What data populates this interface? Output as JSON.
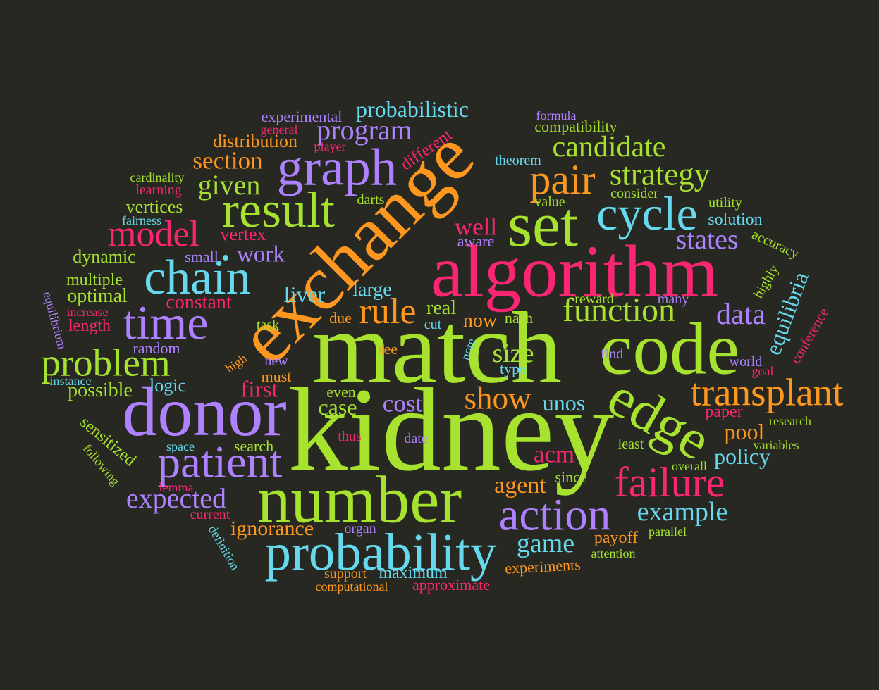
{
  "palette": {
    "background": "#272822",
    "green": "#A6E22E",
    "orange": "#FD971F",
    "pink": "#F92672",
    "purple": "#AE81FF",
    "cyan": "#66D9EF"
  },
  "words": [
    {
      "text": "kidney",
      "color": "green"
    },
    {
      "text": "match",
      "color": "green"
    },
    {
      "text": "exchange",
      "color": "orange"
    },
    {
      "text": "algorithm",
      "color": "pink"
    },
    {
      "text": "code",
      "color": "green"
    },
    {
      "text": "number",
      "color": "green"
    },
    {
      "text": "donor",
      "color": "purple"
    },
    {
      "text": "set",
      "color": "green"
    },
    {
      "text": "edge",
      "color": "green"
    },
    {
      "text": "probability",
      "color": "cyan"
    },
    {
      "text": "chain",
      "color": "cyan"
    },
    {
      "text": "result",
      "color": "green"
    },
    {
      "text": "time",
      "color": "purple"
    },
    {
      "text": "patient",
      "color": "purple"
    },
    {
      "text": "action",
      "color": "purple"
    },
    {
      "text": "graph",
      "color": "purple"
    },
    {
      "text": "cycle",
      "color": "cyan"
    },
    {
      "text": "transplant",
      "color": "orange"
    },
    {
      "text": "failure",
      "color": "pink"
    },
    {
      "text": "pair",
      "color": "orange"
    },
    {
      "text": "problem",
      "color": "green"
    },
    {
      "text": "model",
      "color": "pink"
    },
    {
      "text": "rule",
      "color": "orange"
    },
    {
      "text": "function",
      "color": "green"
    },
    {
      "text": "show",
      "color": "orange"
    },
    {
      "text": "strategy",
      "color": "green"
    },
    {
      "text": "candidate",
      "color": "green"
    },
    {
      "text": "example",
      "color": "cyan"
    },
    {
      "text": "expected",
      "color": "purple"
    },
    {
      "text": "program",
      "color": "purple"
    },
    {
      "text": "given",
      "color": "green"
    },
    {
      "text": "data",
      "color": "purple"
    },
    {
      "text": "game",
      "color": "cyan"
    },
    {
      "text": "states",
      "color": "purple"
    },
    {
      "text": "section",
      "color": "orange"
    },
    {
      "text": "size",
      "color": "green"
    },
    {
      "text": "probabilistic",
      "color": "cyan"
    },
    {
      "text": "cost",
      "color": "purple"
    },
    {
      "text": "case",
      "color": "green"
    },
    {
      "text": "well",
      "color": "pink"
    },
    {
      "text": "agent",
      "color": "orange"
    },
    {
      "text": "acm",
      "color": "pink"
    },
    {
      "text": "policy",
      "color": "cyan"
    },
    {
      "text": "pool",
      "color": "orange"
    },
    {
      "text": "equilibria",
      "color": "cyan"
    },
    {
      "text": "first",
      "color": "pink"
    },
    {
      "text": "work",
      "color": "purple"
    },
    {
      "text": "liver",
      "color": "cyan"
    },
    {
      "text": "unos",
      "color": "cyan"
    },
    {
      "text": "ignorance",
      "color": "orange"
    },
    {
      "text": "real",
      "color": "green"
    },
    {
      "text": "now",
      "color": "orange"
    },
    {
      "text": "large",
      "color": "cyan"
    },
    {
      "text": "constant",
      "color": "pink"
    },
    {
      "text": "distribution",
      "color": "orange"
    },
    {
      "text": "vertices",
      "color": "green"
    },
    {
      "text": "vertex",
      "color": "pink"
    },
    {
      "text": "optimal",
      "color": "green"
    },
    {
      "text": "possible",
      "color": "green"
    },
    {
      "text": "logic",
      "color": "cyan"
    },
    {
      "text": "maximum",
      "color": "cyan"
    },
    {
      "text": "experiments",
      "color": "orange"
    },
    {
      "text": "payoff",
      "color": "orange"
    },
    {
      "text": "paper",
      "color": "pink"
    },
    {
      "text": "solution",
      "color": "cyan"
    },
    {
      "text": "different",
      "color": "pink"
    },
    {
      "text": "sensitized",
      "color": "green"
    },
    {
      "text": "dynamic",
      "color": "green"
    },
    {
      "text": "multiple",
      "color": "green"
    },
    {
      "text": "compatibility",
      "color": "green"
    },
    {
      "text": "experimental",
      "color": "purple"
    },
    {
      "text": "length",
      "color": "pink"
    },
    {
      "text": "random",
      "color": "purple"
    },
    {
      "text": "nash",
      "color": "green"
    },
    {
      "text": "search",
      "color": "green"
    },
    {
      "text": "see",
      "color": "orange"
    },
    {
      "text": "due",
      "color": "orange"
    },
    {
      "text": "type",
      "color": "cyan"
    },
    {
      "text": "even",
      "color": "green"
    },
    {
      "text": "must",
      "color": "orange"
    },
    {
      "text": "new",
      "color": "purple"
    },
    {
      "text": "approximate",
      "color": "pink"
    },
    {
      "text": "highly",
      "color": "green"
    },
    {
      "text": "theorem",
      "color": "cyan"
    },
    {
      "text": "consider",
      "color": "green"
    },
    {
      "text": "utility",
      "color": "green"
    },
    {
      "text": "accuracy",
      "color": "green"
    },
    {
      "text": "many",
      "color": "purple"
    },
    {
      "text": "world",
      "color": "purple"
    },
    {
      "text": "since",
      "color": "green"
    },
    {
      "text": "least",
      "color": "green"
    },
    {
      "text": "value",
      "color": "green"
    },
    {
      "text": "darts",
      "color": "green"
    },
    {
      "text": "aware",
      "color": "purple"
    },
    {
      "text": "small",
      "color": "purple"
    },
    {
      "text": "reward",
      "color": "green"
    },
    {
      "text": "find",
      "color": "purple"
    },
    {
      "text": "cut",
      "color": "cyan"
    },
    {
      "text": "task",
      "color": "green"
    },
    {
      "text": "thus",
      "color": "pink"
    },
    {
      "text": "date",
      "color": "purple"
    },
    {
      "text": "organ",
      "color": "purple"
    },
    {
      "text": "support",
      "color": "orange"
    },
    {
      "text": "computational",
      "color": "orange"
    },
    {
      "text": "current",
      "color": "pink"
    },
    {
      "text": "lemma",
      "color": "pink"
    },
    {
      "text": "space",
      "color": "cyan"
    },
    {
      "text": "following",
      "color": "green"
    },
    {
      "text": "definition",
      "color": "cyan"
    },
    {
      "text": "instance",
      "color": "cyan"
    },
    {
      "text": "equilibrium",
      "color": "purple"
    },
    {
      "text": "increase",
      "color": "pink"
    },
    {
      "text": "fairness",
      "color": "cyan"
    },
    {
      "text": "learning",
      "color": "pink"
    },
    {
      "text": "cardinality",
      "color": "green"
    },
    {
      "text": "general",
      "color": "pink"
    },
    {
      "text": "player",
      "color": "pink"
    },
    {
      "text": "formula",
      "color": "purple"
    },
    {
      "text": "overall",
      "color": "green"
    },
    {
      "text": "parallel",
      "color": "green"
    },
    {
      "text": "attention",
      "color": "green"
    },
    {
      "text": "variables",
      "color": "green"
    },
    {
      "text": "research",
      "color": "green"
    },
    {
      "text": "goal",
      "color": "pink"
    },
    {
      "text": "conference",
      "color": "pink"
    },
    {
      "text": "note",
      "color": "cyan"
    },
    {
      "text": "high",
      "color": "orange"
    }
  ]
}
